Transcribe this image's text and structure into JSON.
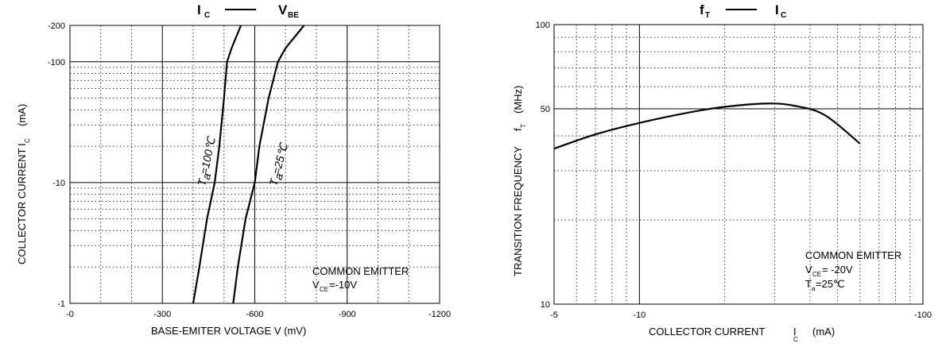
{
  "chart_data": [
    {
      "type": "line",
      "title": {
        "main": "I",
        "main_sub": "C",
        "dash": "—",
        "main2": "V",
        "main2_sub": "BE"
      },
      "xlabel": "BASE-EMITER VOLTAGE V (mV)",
      "ylabel": {
        "text": "COLLECTOR CURRENT",
        "symbol": "I",
        "symbol_sub": "C",
        "unit": "(mA)"
      },
      "x_scale": "linear",
      "y_scale": "log",
      "xlim": [
        0,
        -1200
      ],
      "ylim": [
        -1,
        -200
      ],
      "x_ticks": [
        "-0",
        "-300",
        "-600",
        "-900",
        "-1200"
      ],
      "y_ticks": [
        "-200",
        "-100",
        "-10",
        "-1"
      ],
      "grid": true,
      "annotation": {
        "line1": "COMMON EMITTER",
        "line2_prefix": "V",
        "line2_sub": "CE",
        "line2_value": "=-10V"
      },
      "series": [
        {
          "name": "Ta=100℃",
          "label_prefix": "T",
          "label_sub": "a",
          "label_value": "=100℃",
          "x": [
            -400,
            -420,
            -445,
            -470,
            -485,
            -500,
            -510,
            -525,
            -555
          ],
          "y": [
            -1,
            -2,
            -5,
            -10,
            -20,
            -50,
            -100,
            -130,
            -200
          ]
        },
        {
          "name": "Ta=25℃",
          "label_prefix": "T",
          "label_sub": "a",
          "label_value": "=25℃",
          "x": [
            -530,
            -545,
            -570,
            -600,
            -615,
            -645,
            -675,
            -700,
            -760
          ],
          "y": [
            -1,
            -2,
            -5,
            -10,
            -20,
            -50,
            -100,
            -130,
            -200
          ]
        }
      ]
    },
    {
      "type": "line",
      "title": {
        "main": "f",
        "main_sub": "T",
        "dash": "—",
        "main2": "I",
        "main2_sub": "C"
      },
      "xlabel": {
        "text": "COLLECTOR CURRENT",
        "symbol": "I",
        "symbol_sub": "C",
        "unit": "(mA)"
      },
      "ylabel": {
        "text": "TRANSITION FREQUENCY",
        "symbol": "f",
        "symbol_sub": "T",
        "unit": "(MHz)"
      },
      "x_scale": "log",
      "y_scale": "log",
      "xlim": [
        -5,
        -100
      ],
      "ylim": [
        10,
        100
      ],
      "x_ticks": [
        "-5",
        "-10",
        "-100"
      ],
      "y_ticks": [
        "100",
        "50",
        "10"
      ],
      "grid": true,
      "annotation": {
        "line1": "COMMON EMITTER",
        "line2_prefix": "V",
        "line2_sub": "CE",
        "line2_value": "= -20V",
        "line3_prefix": "T",
        "line3_sub": "a",
        "line3_value": "=25℃"
      },
      "series": [
        {
          "name": "fT",
          "x": [
            -5,
            -7,
            -10,
            -15,
            -20,
            -28,
            -35,
            -45,
            -60
          ],
          "y": [
            36,
            40.5,
            44.5,
            48.5,
            50.8,
            52.2,
            51.3,
            47.5,
            37.5
          ]
        }
      ]
    }
  ]
}
